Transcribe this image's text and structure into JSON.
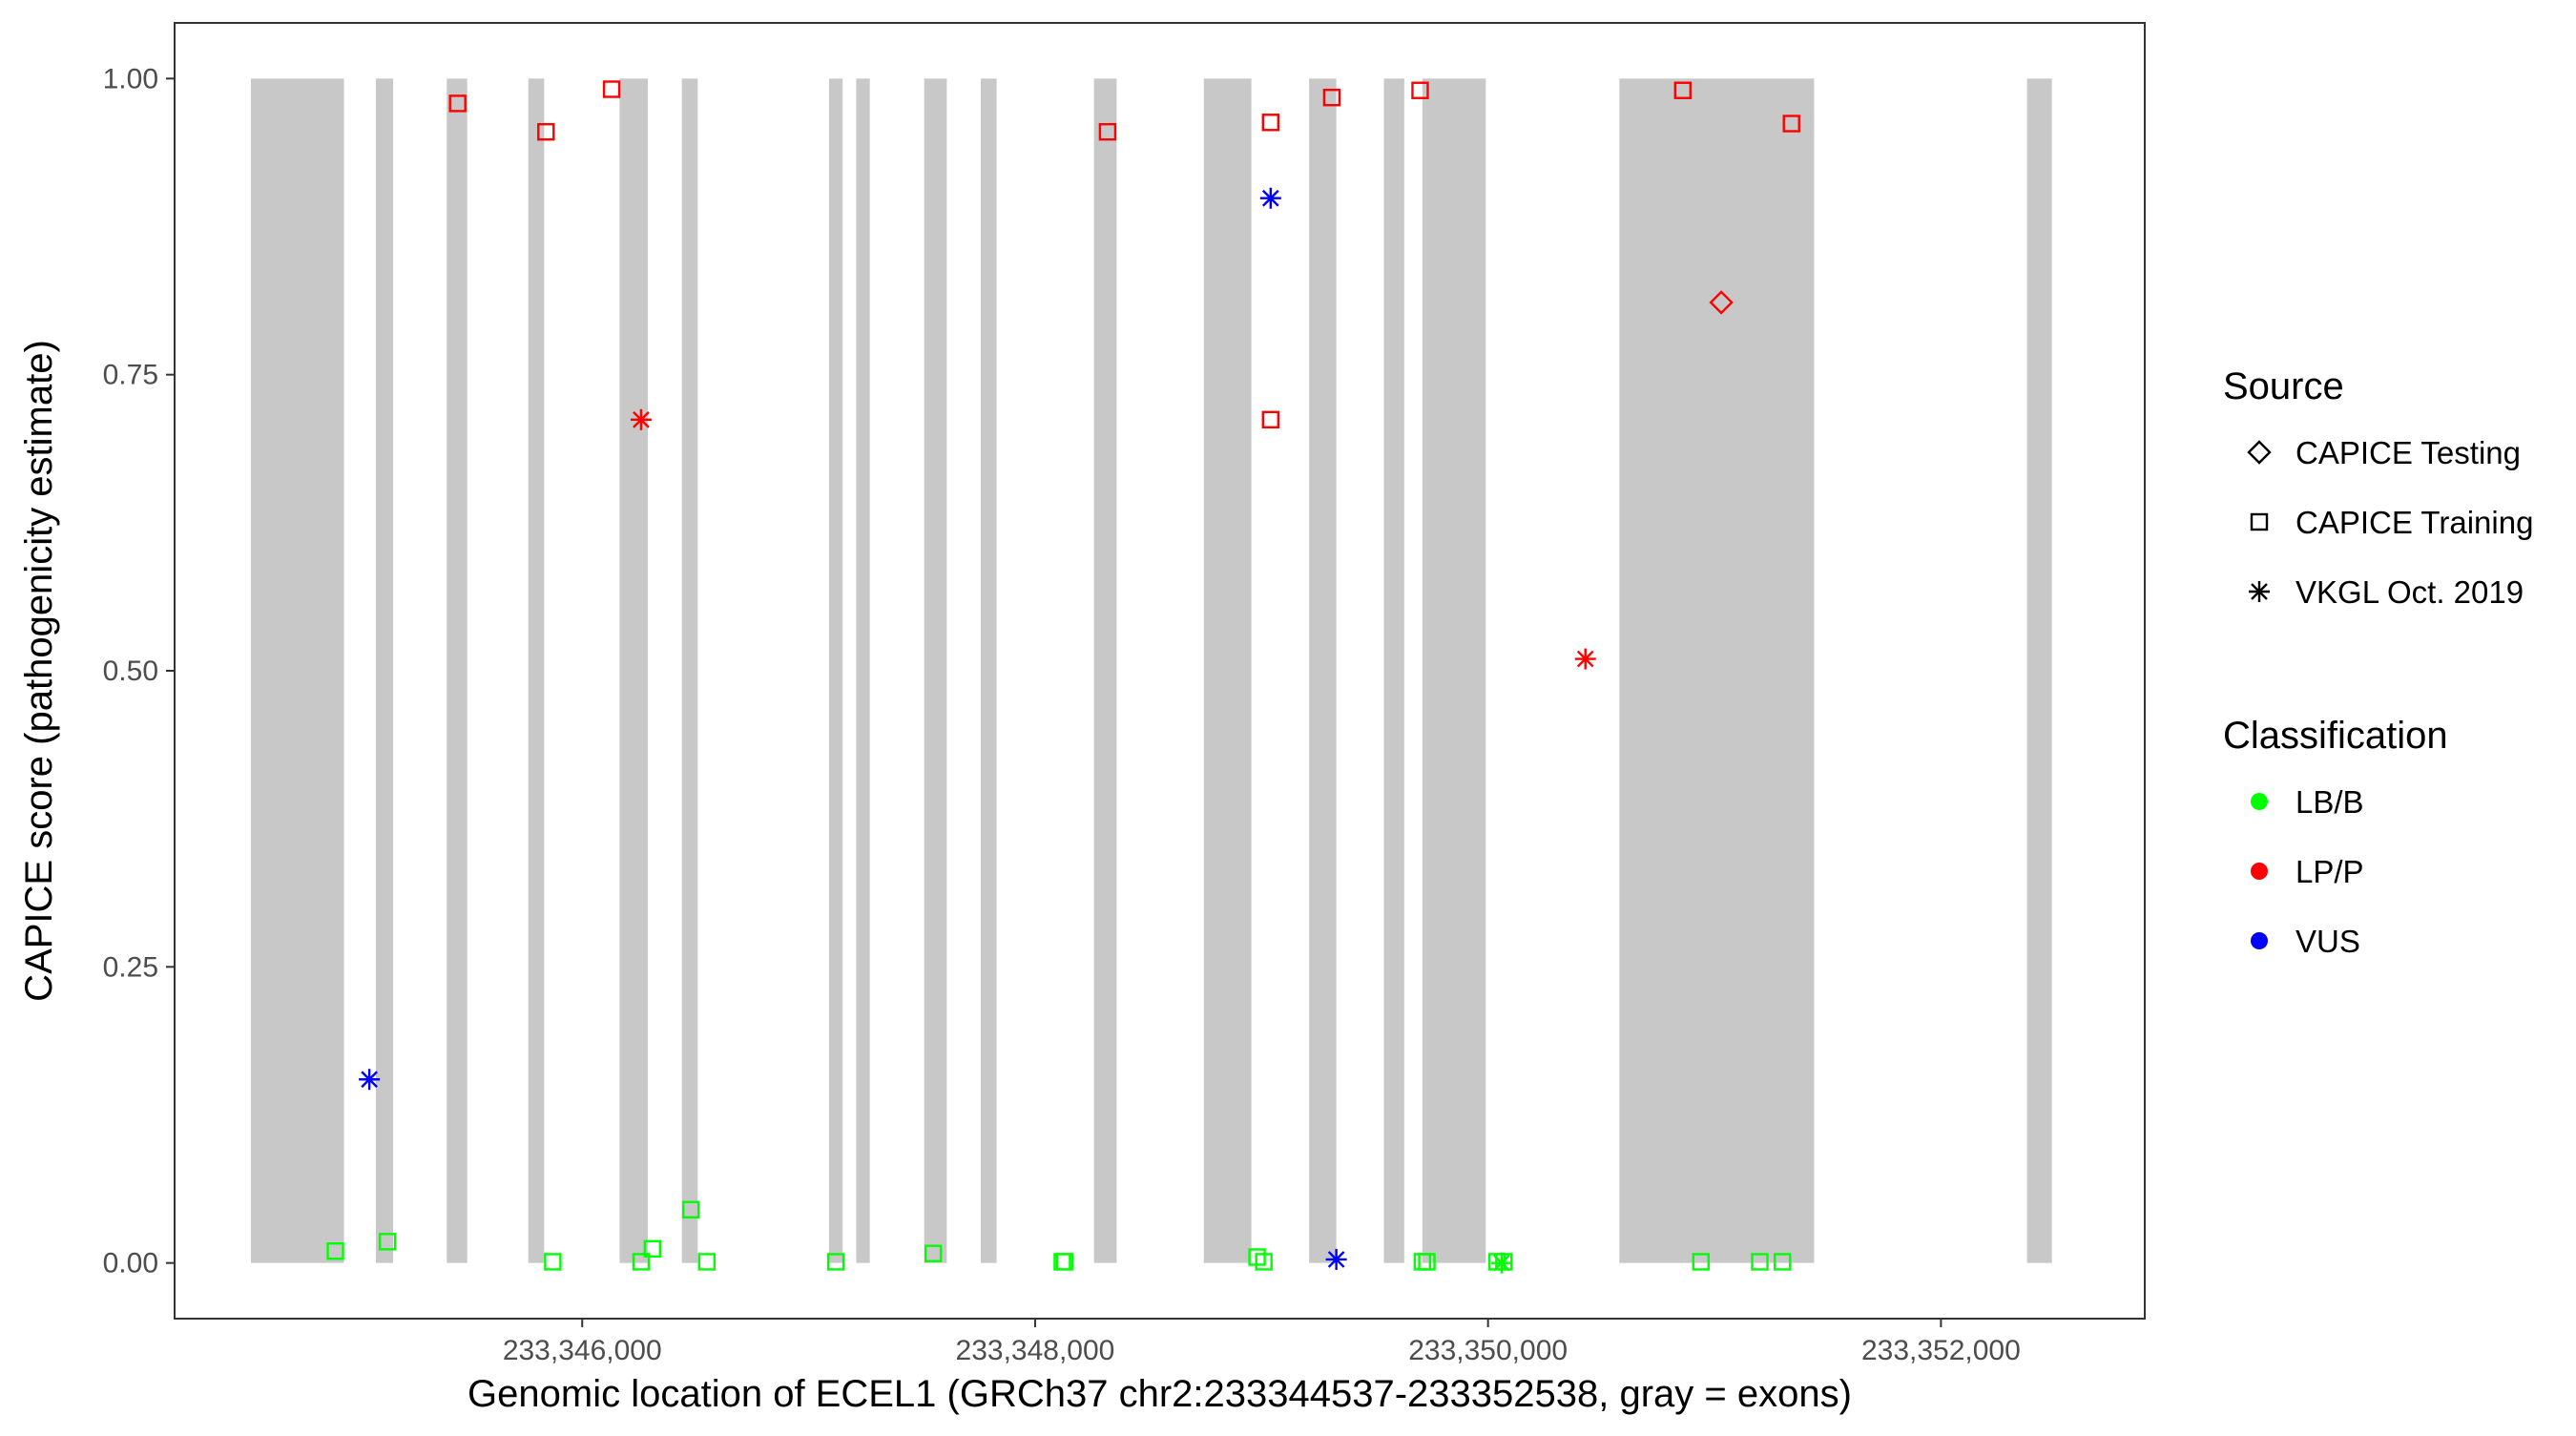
{
  "chart_data": {
    "type": "scatter",
    "xlabel": "Genomic location of ECEL1 (GRCh37 chr2:233344537-233352538, gray = exons)",
    "ylabel": "CAPICE score (pathogenicity estimate)",
    "xlim": [
      233344200,
      233352900
    ],
    "ylim": [
      -0.047,
      1.047
    ],
    "x_ticks": [
      233346000,
      233348000,
      233350000,
      233352000
    ],
    "x_tick_labels": [
      "233,346,000",
      "233,348,000",
      "233,350,000",
      "233,352,000"
    ],
    "y_ticks": [
      0,
      0.25,
      0.5,
      0.75,
      1.0
    ],
    "y_tick_labels": [
      "0.00",
      "0.25",
      "0.50",
      "0.75",
      "1.00"
    ],
    "grid": false,
    "exon_color": "#c8c8c8",
    "exons": [
      [
        233344537,
        233344948
      ],
      [
        233345089,
        233345165
      ],
      [
        233345402,
        233345492
      ],
      [
        233345762,
        233345832
      ],
      [
        233346165,
        233346290
      ],
      [
        233346440,
        233346510
      ],
      [
        233347090,
        233347150
      ],
      [
        233347210,
        233347270
      ],
      [
        233347510,
        233347610
      ],
      [
        233347760,
        233347830
      ],
      [
        233348260,
        233348360
      ],
      [
        233348745,
        233348955
      ],
      [
        233349210,
        233349330
      ],
      [
        233349540,
        233349630
      ],
      [
        233349710,
        233349990
      ],
      [
        233350580,
        233351440
      ],
      [
        233352380,
        233352490
      ]
    ],
    "legends": [
      {
        "title": "Source",
        "position": "right",
        "entries": [
          {
            "label": "CAPICE Testing",
            "shape": "diamond"
          },
          {
            "label": "CAPICE Training",
            "shape": "square"
          },
          {
            "label": "VKGL Oct. 2019",
            "shape": "asterisk"
          }
        ]
      },
      {
        "title": "Classification",
        "position": "right",
        "entries": [
          {
            "label": "LB/B",
            "color": "#00ff00"
          },
          {
            "label": "LP/P",
            "color": "#ff0000"
          },
          {
            "label": "VUS",
            "color": "#0000ff"
          }
        ]
      }
    ],
    "series": [
      {
        "source": "CAPICE Training",
        "classification": "LP/P",
        "shape": "square",
        "color": "#ff0000",
        "points": [
          [
            233345450,
            0.979
          ],
          [
            233345840,
            0.955
          ],
          [
            233346130,
            0.991
          ],
          [
            233348320,
            0.955
          ],
          [
            233349040,
            0.963
          ],
          [
            233349310,
            0.984
          ],
          [
            233349700,
            0.99
          ],
          [
            233350860,
            0.99
          ],
          [
            233351340,
            0.962
          ],
          [
            233349040,
            0.712
          ]
        ]
      },
      {
        "source": "CAPICE Training",
        "classification": "LB/B",
        "shape": "square",
        "color": "#00ff00",
        "points": [
          [
            233344910,
            0.01
          ],
          [
            233345140,
            0.018
          ],
          [
            233345870,
            0.001
          ],
          [
            233346260,
            0.001
          ],
          [
            233346310,
            0.012
          ],
          [
            233346480,
            0.045
          ],
          [
            233346550,
            0.001
          ],
          [
            233347120,
            0.001
          ],
          [
            233347550,
            0.008
          ],
          [
            233348120,
            0.001
          ],
          [
            233348130,
            0.001
          ],
          [
            233348980,
            0.005
          ],
          [
            233349010,
            0.001
          ],
          [
            233349710,
            0.001
          ],
          [
            233349730,
            0.001
          ],
          [
            233350040,
            0.001
          ],
          [
            233350070,
            0.001
          ],
          [
            233350940,
            0.001
          ],
          [
            233351200,
            0.001
          ],
          [
            233351300,
            0.001
          ]
        ]
      },
      {
        "source": "CAPICE Testing",
        "classification": "LP/P",
        "shape": "diamond",
        "color": "#ff0000",
        "points": [
          [
            233351030,
            0.811
          ]
        ]
      },
      {
        "source": "VKGL Oct. 2019",
        "classification": "LP/P",
        "shape": "asterisk",
        "color": "#ff0000",
        "points": [
          [
            233346260,
            0.712
          ],
          [
            233350430,
            0.51
          ]
        ]
      },
      {
        "source": "VKGL Oct. 2019",
        "classification": "VUS",
        "shape": "asterisk",
        "color": "#0000ff",
        "points": [
          [
            233345060,
            0.155
          ],
          [
            233349040,
            0.899
          ],
          [
            233349330,
            0.003
          ]
        ]
      },
      {
        "source": "VKGL Oct. 2019",
        "classification": "LB/B",
        "shape": "asterisk",
        "color": "#00ff00",
        "points": [
          [
            233350060,
            0.0
          ]
        ]
      }
    ]
  }
}
